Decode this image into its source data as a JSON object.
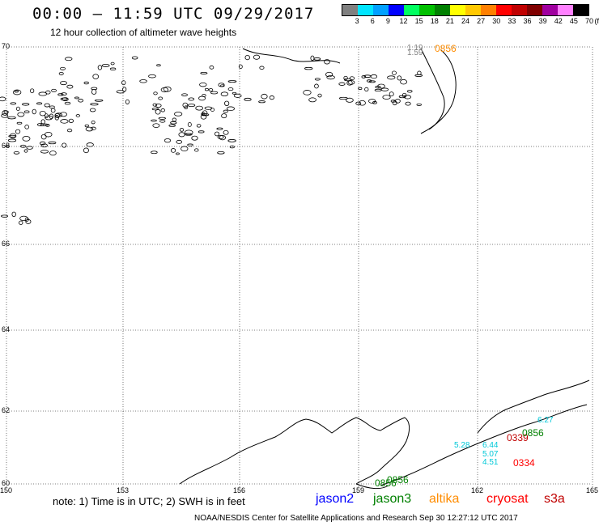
{
  "header": {
    "title": "00:00 – 11:59 UTC 09/29/2017",
    "subtitle": "12 hour collection of altimeter wave heights"
  },
  "colorbar": {
    "colors": [
      "#808080",
      "#00e5ff",
      "#00a0ff",
      "#0000ff",
      "#00ff60",
      "#00c000",
      "#008000",
      "#ffff00",
      "#ffc800",
      "#ff8000",
      "#ff0000",
      "#c00000",
      "#800000",
      "#a000a0",
      "#ff80ff",
      "#000000"
    ],
    "labels": [
      "3",
      "6",
      "9",
      "12",
      "15",
      "18",
      "21",
      "24",
      "27",
      "30",
      "33",
      "36",
      "39",
      "42",
      "45",
      "70"
    ],
    "unit": "(ft)"
  },
  "axes": {
    "lat_ticks": [
      "70",
      "68",
      "66",
      "64",
      "62",
      "60"
    ],
    "lon_ticks": [
      "150",
      "153",
      "156",
      "159",
      "162",
      "165"
    ]
  },
  "observations": [
    {
      "text": "1.19",
      "color": "#808080"
    },
    {
      "text": "1.59",
      "color": "#808080"
    },
    {
      "text": "0856",
      "color": "#ff8c00"
    },
    {
      "text": "6.44",
      "color": "#00c8d8"
    },
    {
      "text": "5.07",
      "color": "#00c8d8"
    },
    {
      "text": "4.51",
      "color": "#00c8d8"
    },
    {
      "text": "0334",
      "color": "#ff0000"
    },
    {
      "text": "0339",
      "color": "#c00000"
    },
    {
      "text": "0856",
      "color": "#008000"
    },
    {
      "text": "0856",
      "color": "#008000"
    },
    {
      "text": "0856",
      "color": "#008000"
    },
    {
      "text": "5.28",
      "color": "#00c8d8"
    },
    {
      "text": "6.27",
      "color": "#00c8d8"
    }
  ],
  "footer": {
    "note": "note: 1) Time is in UTC; 2) SWH is in feet",
    "satellites": [
      {
        "name": "jason2",
        "color": "#0000ff"
      },
      {
        "name": "jason3",
        "color": "#008000"
      },
      {
        "name": "altika",
        "color": "#ff8c00"
      },
      {
        "name": "cryosat",
        "color": "#ff0000"
      },
      {
        "name": "s3a",
        "color": "#c00000"
      }
    ],
    "credit": "NOAA/NESDIS Center for Satellite Applications and Research     Sep 30 12:27:12 UTC 2017"
  }
}
